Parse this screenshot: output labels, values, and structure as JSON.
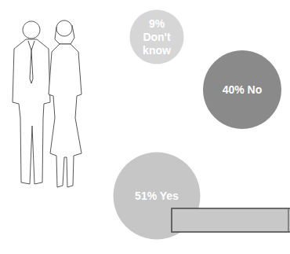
{
  "chart_data": {
    "type": "bubble",
    "categories": [
      "Don't know",
      "No",
      "Yes"
    ],
    "values": [
      9,
      40,
      51
    ],
    "value_labels": [
      "9%",
      "40%",
      "51%"
    ],
    "colors": [
      "#d6d6d6",
      "#8a8a8a",
      "#c6c6c6"
    ],
    "data_labels": true
  }
}
